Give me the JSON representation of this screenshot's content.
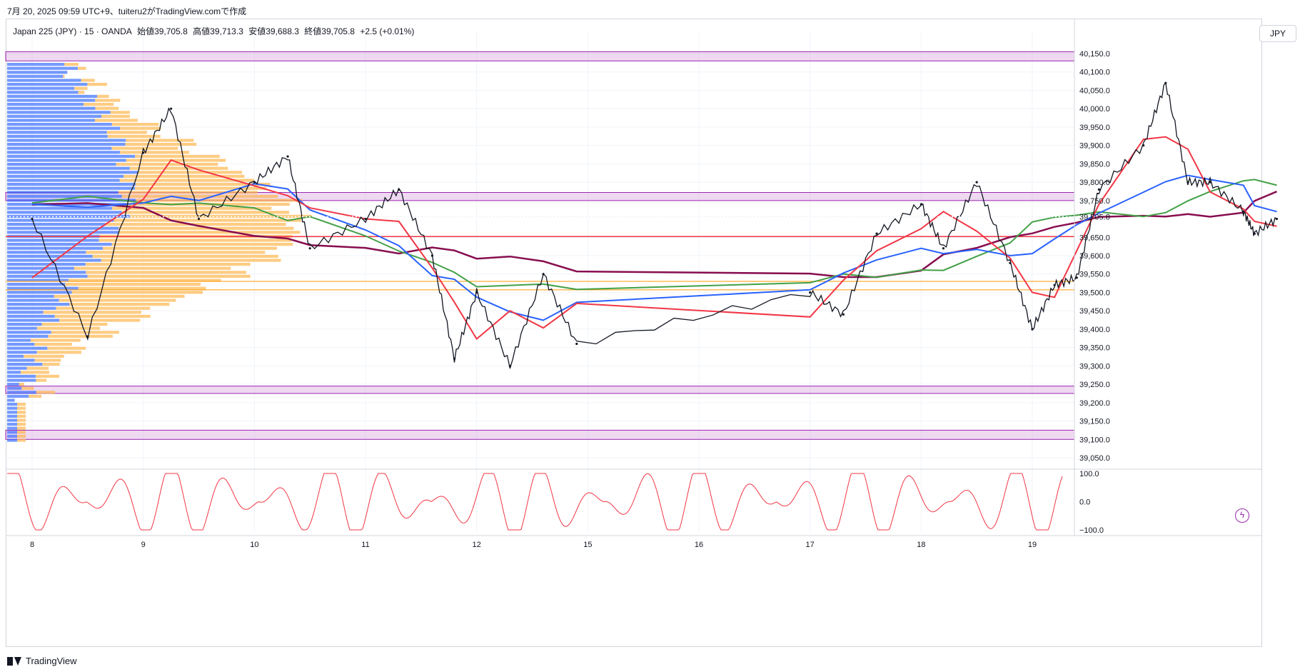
{
  "header": {
    "title": "7月 20, 2025 09:59 UTC+9、tuiteru2がTradingView.comで作成"
  },
  "legend": {
    "symbol": "Japan 225 (JPY) · 15 · OANDA",
    "open": "始値39,705.8",
    "high": "高値39,713.3",
    "low": "安値39,688.3",
    "close": "終値39,705.8",
    "change": "+2.5 (+0.01%)"
  },
  "currency": "JPY",
  "current_price_label": "39,705.8",
  "footer": {
    "brand": "TradingView"
  },
  "colors": {
    "candles": "#131722",
    "ma_red": "#f23645",
    "ma_blue": "#2962ff",
    "ma_green": "#43a047",
    "ma_maroon": "#880e4f",
    "zone_purple": "#ce93d8",
    "oscillator": "#f23645",
    "vp_blue": "#2962ff",
    "vp_orange": "#ffb74d",
    "hline_red": "#f23645",
    "hline_orange": "#ff9800"
  },
  "chart_data": {
    "type": "line",
    "ylim": [
      39000,
      40250
    ],
    "y_ticks": [
      "40,150.0",
      "40,100.0",
      "40,050.0",
      "40,000.0",
      "39,950.0",
      "39,900.0",
      "39,850.0",
      "39,800.0",
      "39,750.0",
      "39,705.8",
      "39,650.0",
      "39,600.0",
      "39,550.0",
      "39,500.0",
      "39,450.0",
      "39,400.0",
      "39,350.0",
      "39,300.0",
      "39,250.0",
      "39,200.0",
      "39,150.0",
      "39,100.0",
      "39,050.0"
    ],
    "x_ticks": [
      "8",
      "9",
      "10",
      "11",
      "12",
      "15",
      "16",
      "17",
      "18",
      "19"
    ],
    "x": [
      8,
      8.5,
      9,
      9.25,
      9.5,
      10,
      10.3,
      10.5,
      11,
      11.3,
      11.6,
      11.8,
      12,
      12.3,
      12.6,
      12.9,
      15,
      15.3,
      15.6,
      16,
      16.2,
      16.5,
      16.8,
      17,
      17.2,
      17.4,
      17.6,
      18,
      18.2,
      18.4,
      18.6,
      18.9,
      19,
      19.2
    ],
    "series": [
      {
        "values": [
          39700,
          39380,
          39880,
          40000,
          39700,
          39800,
          39870,
          39620,
          39700,
          39780,
          39600,
          39320,
          39500,
          39300,
          39550,
          39360,
          39500,
          39440,
          39660,
          39740,
          39620,
          39800,
          39580,
          39400,
          39520,
          39540,
          39780,
          39900,
          40070,
          39800,
          39800,
          39720,
          39660,
          39700
        ]
      }
    ],
    "horizontal_levels": [
      39652,
      39530,
      39507
    ],
    "zones": [
      [
        40130,
        40155
      ],
      [
        39750,
        39772
      ],
      [
        39225,
        39245
      ],
      [
        39100,
        39125
      ]
    ],
    "oscillator": {
      "ylim": [
        -100,
        100
      ],
      "ticks": [
        "100.0",
        "0.0",
        "−100.0"
      ]
    }
  }
}
